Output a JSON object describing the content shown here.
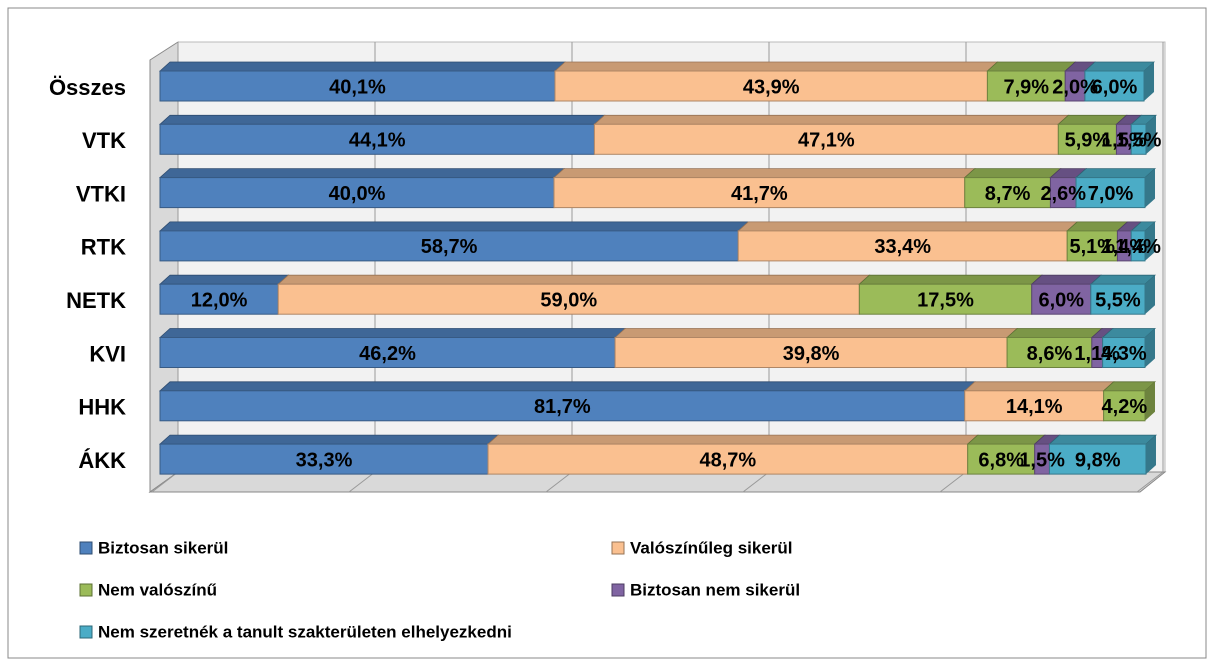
{
  "chart_data": {
    "type": "stacked-bar-horizontal",
    "categories": [
      "Összes",
      "VTK",
      "VTKI",
      "RTK",
      "NETK",
      "KVI",
      "HHK",
      "ÁKK"
    ],
    "series": [
      {
        "name": "Biztosan sikerül",
        "color": "#4f81bd",
        "values": [
          40.1,
          44.1,
          40.0,
          58.7,
          12.0,
          46.2,
          81.7,
          33.3
        ],
        "value_labels": [
          "40,1%",
          "44,1%",
          "40,0%",
          "58,7%",
          "12,0%",
          "46,2%",
          "81,7%",
          "33,3%"
        ]
      },
      {
        "name": "Valószínűleg sikerül",
        "color": "#fac090",
        "values": [
          43.9,
          47.1,
          41.7,
          33.4,
          59.0,
          39.8,
          14.1,
          48.7
        ],
        "value_labels": [
          "43,9%",
          "47,1%",
          "41,7%",
          "33,4%",
          "59,0%",
          "39,8%",
          "14,1%",
          "48,7%"
        ]
      },
      {
        "name": "Nem valószínű",
        "color": "#9bbb59",
        "values": [
          7.9,
          5.9,
          8.7,
          5.1,
          17.5,
          8.6,
          4.2,
          6.8
        ],
        "value_labels": [
          "7,9%",
          "5,9%",
          "8,7%",
          "5,1%",
          "17,5%",
          "8,6%",
          "4,2%",
          "6,8%"
        ]
      },
      {
        "name": "Biztosan nem sikerül",
        "color": "#8064a2",
        "values": [
          2.0,
          1.5,
          2.6,
          1.4,
          6.0,
          1.1,
          null,
          1.5
        ],
        "value_labels": [
          "2,0%",
          "1,5%",
          "2,6%",
          "1,4%",
          "6,0%",
          "1,1%",
          null,
          "1,5%"
        ]
      },
      {
        "name": "Nem szeretnék a tanult szakterületen elhelyezkedni",
        "color": "#4bacc6",
        "values": [
          6.0,
          1.5,
          7.0,
          1.4,
          5.5,
          4.3,
          null,
          9.8
        ],
        "value_labels": [
          "6,0%",
          "1,5%",
          "7,0%",
          "1,4%",
          "5,5%",
          "4,3%",
          null,
          "9,8%"
        ]
      }
    ],
    "xlim": [
      0,
      100
    ],
    "xticks": [
      0,
      20,
      40,
      60,
      80,
      100
    ],
    "grid": true
  }
}
